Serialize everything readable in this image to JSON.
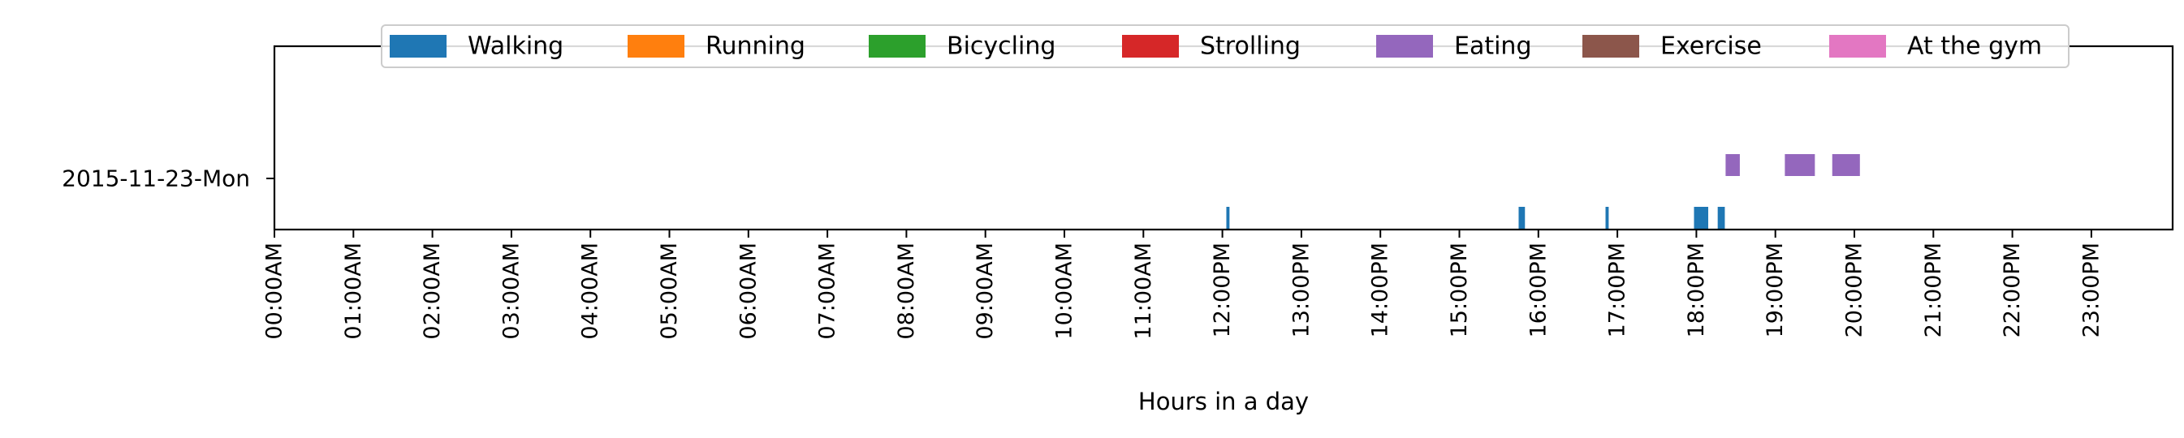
{
  "chart_data": {
    "type": "timeline",
    "xlabel": "Hours in a day",
    "ylabel": "",
    "title": "",
    "xlim": [
      0,
      24
    ],
    "grid": false,
    "legend_position": "top",
    "x_ticks": [
      "00:00AM",
      "01:00AM",
      "02:00AM",
      "03:00AM",
      "04:00AM",
      "05:00AM",
      "06:00AM",
      "07:00AM",
      "08:00AM",
      "09:00AM",
      "10:00AM",
      "11:00AM",
      "12:00PM",
      "13:00PM",
      "14:00PM",
      "15:00PM",
      "16:00PM",
      "17:00PM",
      "18:00PM",
      "19:00PM",
      "20:00PM",
      "21:00PM",
      "22:00PM",
      "23:00PM"
    ],
    "rows": [
      "2015-11-23-Mon"
    ],
    "legend": [
      {
        "name": "Walking",
        "color": "#1f77b4"
      },
      {
        "name": "Running",
        "color": "#ff7f0e"
      },
      {
        "name": "Bicycling",
        "color": "#2ca02c"
      },
      {
        "name": "Strolling",
        "color": "#d62728"
      },
      {
        "name": "Eating",
        "color": "#9467bd"
      },
      {
        "name": "Exercise",
        "color": "#8c564b"
      },
      {
        "name": "At the gym",
        "color": "#e377c2"
      }
    ],
    "series": [
      {
        "name": "Walking",
        "row": "2015-11-23-Mon",
        "lane": "lower",
        "intervals": [
          [
            12.05,
            12.09
          ],
          [
            15.75,
            15.83
          ],
          [
            16.85,
            16.89
          ],
          [
            17.97,
            18.15
          ],
          [
            18.27,
            18.36
          ]
        ]
      },
      {
        "name": "Eating",
        "row": "2015-11-23-Mon",
        "lane": "upper",
        "intervals": [
          [
            18.37,
            18.55
          ],
          [
            19.12,
            19.5
          ],
          [
            19.72,
            20.07
          ]
        ]
      }
    ]
  }
}
